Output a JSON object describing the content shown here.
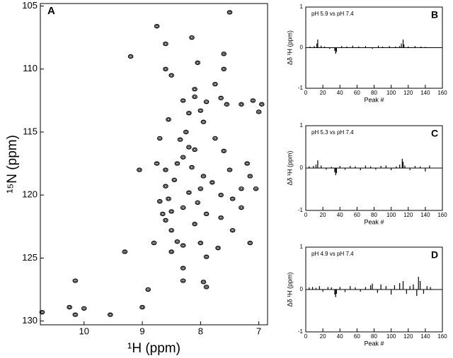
{
  "chart_data": [
    {
      "type": "scatter",
      "panel": "A",
      "xlabel": "¹H (ppm)",
      "ylabel": "¹⁵N (ppm)",
      "xlim": [
        10.75,
        6.85
      ],
      "ylim": [
        104.8,
        130.3
      ],
      "xticks": [
        10,
        9,
        8,
        7
      ],
      "yticks": [
        105,
        110,
        115,
        120,
        125,
        130
      ],
      "color": "#000000",
      "x": [
        10.72,
        10.15,
        10.25,
        10.15,
        10.0,
        9.55,
        9.2,
        9.3,
        9.0,
        8.9,
        8.75,
        8.6,
        8.6,
        8.5,
        8.55,
        8.7,
        8.75,
        8.6,
        8.6,
        8.55,
        8.5,
        8.6,
        8.5,
        8.4,
        8.5,
        8.3,
        8.3,
        8.3,
        8.45,
        8.4,
        8.3,
        8.2,
        8.35,
        8.25,
        8.2,
        8.3,
        8.1,
        8.0,
        7.9,
        7.75,
        7.65,
        7.55,
        7.6,
        7.5,
        7.6,
        8.05,
        8.1,
        7.3,
        7.1,
        6.95,
        7.0,
        7.6,
        7.5,
        7.2,
        7.15,
        7.3,
        7.45,
        7.3,
        7.65,
        7.65,
        7.8,
        7.95,
        8.0,
        8.05,
        7.9,
        8.1,
        8.0,
        7.9,
        7.95,
        7.9,
        7.15,
        7.7,
        8.15,
        8.1,
        7.75,
        8.2,
        8.3,
        8.7,
        8.65,
        8.8,
        7.45,
        9.05,
        8.15,
        7.95,
        7.05
      ],
      "y": [
        129.3,
        126.8,
        128.9,
        129.5,
        129.0,
        129.5,
        109.0,
        124.5,
        128.9,
        127.5,
        106.6,
        108.0,
        110.0,
        110.5,
        114.0,
        115.5,
        117.5,
        118.0,
        119.3,
        120.3,
        121.3,
        122.0,
        122.8,
        123.7,
        124.5,
        124.0,
        125.8,
        126.8,
        118.8,
        117.5,
        117.0,
        116.2,
        115.6,
        115.0,
        113.5,
        112.5,
        112.2,
        113.3,
        112.6,
        111.2,
        112.3,
        112.8,
        110.0,
        105.5,
        108.8,
        109.5,
        111.6,
        112.8,
        112.5,
        112.8,
        113.4,
        116.5,
        118.0,
        117.5,
        118.5,
        119.5,
        120.3,
        121.0,
        121.8,
        120.0,
        119.0,
        118.5,
        119.5,
        120.6,
        121.5,
        122.3,
        123.8,
        124.9,
        126.9,
        127.3,
        123.8,
        124.2,
        117.8,
        116.4,
        115.5,
        119.8,
        121.0,
        120.5,
        121.5,
        123.8,
        122.8,
        118.0,
        107.5,
        114.2,
        119.5
      ]
    },
    {
      "type": "bar",
      "panel": "B",
      "annotation": "pH 5.9 vs pH 7.4",
      "xlabel": "Peak #",
      "ylabel": "Δδ ¹H (ppm)",
      "xlim": [
        0,
        160
      ],
      "ylim": [
        -1,
        1
      ],
      "xticks": [
        0,
        20,
        40,
        60,
        80,
        100,
        120,
        140,
        160
      ],
      "yticks": [
        -1,
        0,
        1
      ],
      "color": "#000000",
      "x": [
        5,
        10,
        13,
        14,
        18,
        22,
        28,
        34,
        35,
        36,
        42,
        48,
        55,
        62,
        70,
        78,
        85,
        90,
        98,
        105,
        110,
        112,
        114,
        115,
        120,
        128,
        135,
        140
      ],
      "values": [
        0.03,
        0.04,
        0.1,
        0.2,
        0.05,
        0.03,
        -0.03,
        -0.08,
        -0.15,
        -0.1,
        0.04,
        0.03,
        0.05,
        0.03,
        0.04,
        -0.03,
        0.05,
        0.03,
        0.04,
        0.03,
        0.04,
        0.1,
        0.2,
        0.08,
        0.03,
        0.04,
        0.03,
        0.02
      ]
    },
    {
      "type": "bar",
      "panel": "C",
      "annotation": "pH 5.3 vs pH 7.4",
      "xlabel": "Peak #",
      "ylabel": "Δδ ¹H (ppm)",
      "xlim": [
        0,
        160
      ],
      "ylim": [
        -1,
        1
      ],
      "xticks": [
        0,
        20,
        40,
        60,
        80,
        100,
        120,
        140,
        160
      ],
      "yticks": [
        -1,
        0,
        1
      ],
      "color": "#000000",
      "x": [
        4,
        9,
        12,
        14,
        18,
        24,
        30,
        34,
        35,
        36,
        40,
        46,
        52,
        58,
        64,
        70,
        76,
        82,
        88,
        94,
        100,
        106,
        110,
        113,
        114,
        116,
        122,
        128,
        134,
        140,
        145
      ],
      "values": [
        0.04,
        0.05,
        0.08,
        0.18,
        0.06,
        -0.04,
        0.03,
        -0.1,
        -0.17,
        -0.12,
        0.05,
        -0.04,
        0.05,
        0.04,
        -0.05,
        0.06,
        0.04,
        -0.04,
        0.05,
        0.06,
        -0.05,
        0.04,
        0.08,
        0.22,
        0.15,
        0.06,
        -0.05,
        0.05,
        0.04,
        -0.08,
        0.06
      ]
    },
    {
      "type": "bar",
      "panel": "D",
      "annotation": "pH 4.9 vs pH 7.4",
      "xlabel": "Peak #",
      "ylabel": "Δδ ¹H (ppm)",
      "xlim": [
        0,
        160
      ],
      "ylim": [
        -1,
        1
      ],
      "xticks": [
        0,
        20,
        40,
        60,
        80,
        100,
        120,
        140,
        160
      ],
      "yticks": [
        -1,
        0,
        1
      ],
      "color": "#000000",
      "x": [
        4,
        8,
        12,
        16,
        20,
        26,
        30,
        34,
        35,
        36,
        40,
        46,
        52,
        58,
        64,
        70,
        76,
        78,
        84,
        88,
        94,
        100,
        104,
        110,
        114,
        118,
        122,
        126,
        130,
        132,
        134,
        138,
        142,
        146
      ],
      "values": [
        0.05,
        0.06,
        0.04,
        0.08,
        -0.05,
        0.06,
        0.05,
        -0.12,
        -0.18,
        -0.1,
        0.06,
        -0.06,
        0.08,
        0.05,
        -0.05,
        0.06,
        0.1,
        0.14,
        -0.08,
        0.12,
        0.08,
        -0.12,
        0.1,
        0.15,
        0.2,
        -0.1,
        0.08,
        0.12,
        -0.15,
        0.3,
        0.2,
        -0.1,
        0.08,
        0.06
      ]
    }
  ]
}
